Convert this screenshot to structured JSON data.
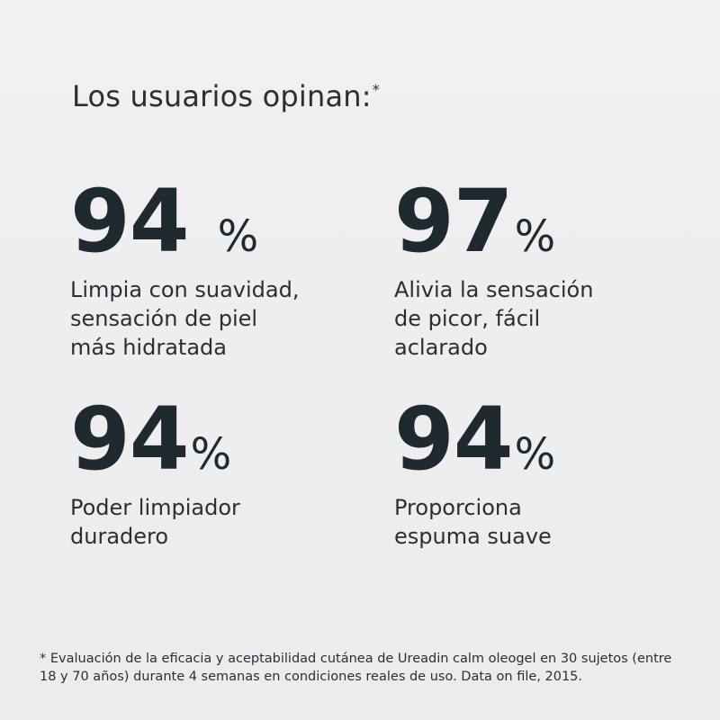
{
  "title": {
    "text": "Los usuarios opinan:",
    "marker": "*"
  },
  "stats": [
    {
      "value": "94",
      "unit": "%",
      "description": "Limpia con suavidad,\nsensación de piel\nmás hidratada"
    },
    {
      "value": "97",
      "unit": "%",
      "description": "Alivia la sensación\nde picor, fácil\naclarado"
    },
    {
      "value": "94",
      "unit": "%",
      "description": "Poder limpiador\nduradero"
    },
    {
      "value": "94",
      "unit": "%",
      "description": "Proporciona\nespuma suave"
    }
  ],
  "footnote": "* Evaluación de la eficacia y aceptabilidad cutánea de Ureadin calm oleogel en 30 sujetos (entre 18 y 70 años) durante 4 semanas en condiciones reales de uso. Data on file, 2015.",
  "colors": {
    "background": "#ededed",
    "text": "#1f2a30"
  }
}
